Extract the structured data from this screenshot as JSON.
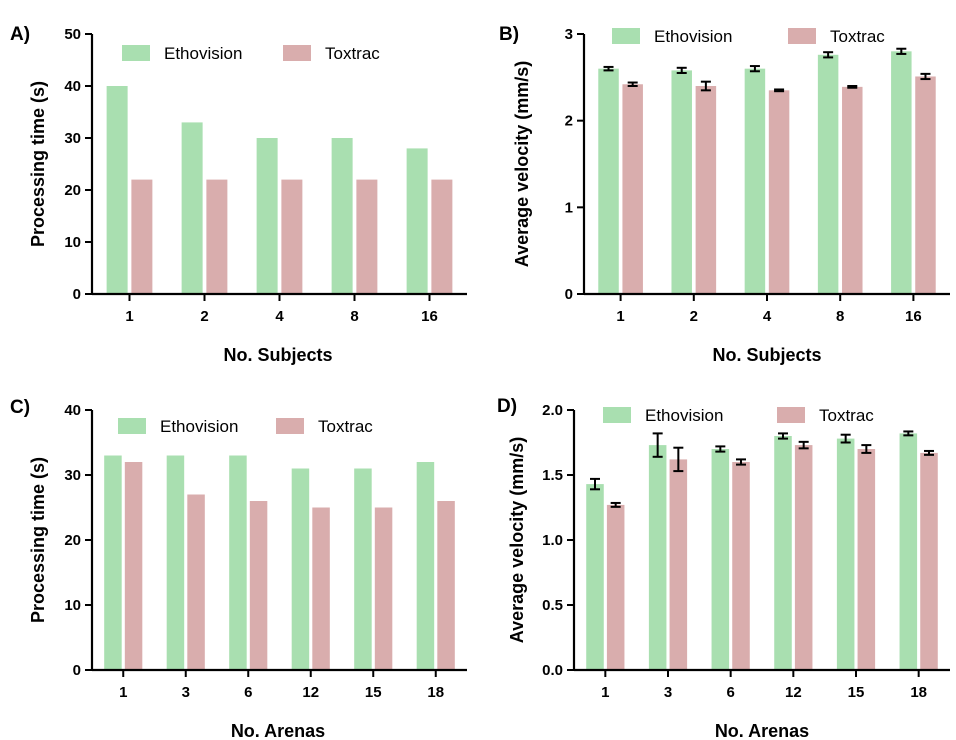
{
  "colors": {
    "ethovision": "#a9dfb0",
    "toxtrac": "#d9adad",
    "axis": "#000000"
  },
  "legend": {
    "series_a": "Ethovision",
    "series_b": "Toxtrac"
  },
  "chart_data": [
    {
      "id": "A",
      "letter": "A)",
      "type": "bar",
      "ylabel": "Processing time (s)",
      "xlabel": "No. Subjects",
      "categories": [
        "1",
        "2",
        "4",
        "8",
        "16"
      ],
      "ylim": [
        0,
        50
      ],
      "yticks": [
        0,
        10,
        20,
        30,
        40,
        50
      ],
      "ytick_labels": [
        "0",
        "10",
        "20",
        "30",
        "40",
        "50"
      ],
      "legend_position": "top",
      "series": [
        {
          "name": "Ethovision",
          "values": [
            40,
            33,
            30,
            30,
            28
          ]
        },
        {
          "name": "Toxtrac",
          "values": [
            22,
            22,
            22,
            22,
            22
          ]
        }
      ]
    },
    {
      "id": "B",
      "letter": "B)",
      "type": "bar",
      "ylabel": "Average velocity (mm/s)",
      "xlabel": "No. Subjects",
      "categories": [
        "1",
        "2",
        "4",
        "8",
        "16"
      ],
      "ylim": [
        0,
        3
      ],
      "yticks": [
        0,
        1,
        2,
        3
      ],
      "ytick_labels": [
        "0",
        "1",
        "2",
        "3"
      ],
      "legend_position": "top",
      "series": [
        {
          "name": "Ethovision",
          "values": [
            2.6,
            2.58,
            2.6,
            2.76,
            2.8
          ],
          "errors": [
            0.02,
            0.03,
            0.03,
            0.03,
            0.03
          ]
        },
        {
          "name": "Toxtrac",
          "values": [
            2.42,
            2.4,
            2.35,
            2.39,
            2.51
          ],
          "errors": [
            0.02,
            0.05,
            0.01,
            0.01,
            0.03
          ]
        }
      ]
    },
    {
      "id": "C",
      "letter": "C)",
      "type": "bar",
      "ylabel": "Processing time (s)",
      "xlabel": "No. Arenas",
      "categories": [
        "1",
        "3",
        "6",
        "12",
        "15",
        "18"
      ],
      "ylim": [
        0,
        40
      ],
      "yticks": [
        0,
        10,
        20,
        30,
        40
      ],
      "ytick_labels": [
        "0",
        "10",
        "20",
        "30",
        "40"
      ],
      "legend_position": "top",
      "series": [
        {
          "name": "Ethovision",
          "values": [
            33,
            33,
            33,
            31,
            31,
            32
          ]
        },
        {
          "name": "Toxtrac",
          "values": [
            32,
            27,
            26,
            25,
            25,
            26
          ]
        }
      ]
    },
    {
      "id": "D",
      "letter": "D)",
      "type": "bar",
      "ylabel": "Average velocity (mm/s)",
      "xlabel": "No. Arenas",
      "categories": [
        "1",
        "3",
        "6",
        "12",
        "15",
        "18"
      ],
      "ylim": [
        0,
        2.0
      ],
      "yticks": [
        0,
        0.5,
        1.0,
        1.5,
        2.0
      ],
      "ytick_labels": [
        "0.0",
        "0.5",
        "1.0",
        "1.5",
        "2.0"
      ],
      "legend_position": "top",
      "series": [
        {
          "name": "Ethovision",
          "values": [
            1.43,
            1.73,
            1.7,
            1.8,
            1.78,
            1.82
          ],
          "errors": [
            0.04,
            0.09,
            0.02,
            0.02,
            0.03,
            0.015
          ]
        },
        {
          "name": "Toxtrac",
          "values": [
            1.27,
            1.62,
            1.6,
            1.73,
            1.7,
            1.67
          ],
          "errors": [
            0.015,
            0.09,
            0.02,
            0.025,
            0.03,
            0.015
          ]
        }
      ]
    }
  ]
}
